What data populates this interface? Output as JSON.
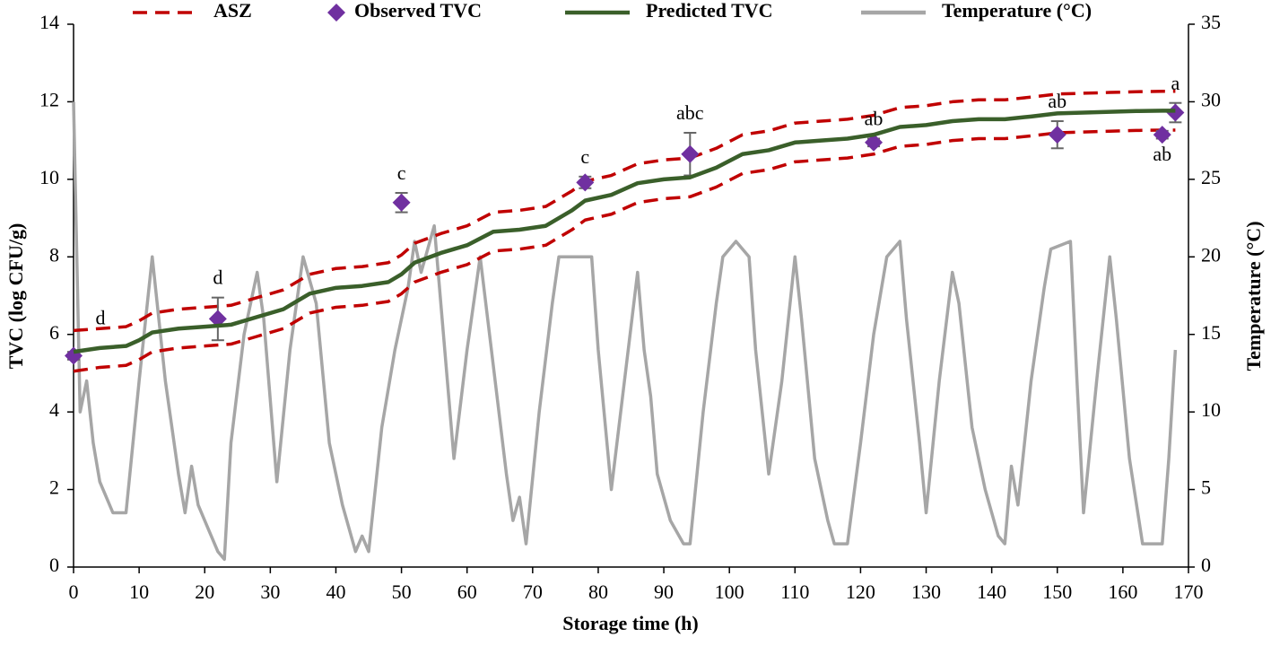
{
  "chart_data": {
    "type": "line",
    "x_label": "Storage time (h)",
    "y_label": "TVC (log CFU/g)",
    "y2_label": "Temperature (°C)",
    "xlim": [
      0,
      170
    ],
    "xticks": [
      0,
      10,
      20,
      30,
      40,
      50,
      60,
      70,
      80,
      90,
      100,
      110,
      120,
      130,
      140,
      150,
      160,
      170
    ],
    "ylim": [
      0,
      14
    ],
    "yticks": [
      0,
      2,
      4,
      6,
      8,
      10,
      12,
      14
    ],
    "y2lim": [
      0,
      35
    ],
    "y2ticks": [
      0,
      5,
      10,
      15,
      20,
      25,
      30,
      35
    ],
    "legend": "top",
    "grid": false,
    "series": [
      {
        "name": "ASZ",
        "kind": "band",
        "color": "#c00000",
        "x": [
          0,
          4,
          8,
          10,
          12,
          16,
          20,
          24,
          28,
          32,
          34,
          36,
          40,
          44,
          48,
          50,
          52,
          56,
          60,
          64,
          68,
          72,
          76,
          78,
          82,
          86,
          90,
          94,
          98,
          102,
          106,
          110,
          114,
          118,
          122,
          126,
          130,
          134,
          138,
          142,
          146,
          150,
          154,
          158,
          162,
          166,
          168
        ],
        "upper": [
          6.1,
          6.15,
          6.2,
          6.35,
          6.55,
          6.65,
          6.7,
          6.75,
          6.95,
          7.15,
          7.35,
          7.55,
          7.7,
          7.75,
          7.85,
          8.05,
          8.35,
          8.6,
          8.8,
          9.15,
          9.2,
          9.3,
          9.7,
          9.95,
          10.1,
          10.4,
          10.5,
          10.55,
          10.8,
          11.15,
          11.25,
          11.45,
          11.5,
          11.55,
          11.65,
          11.85,
          11.9,
          12.0,
          12.05,
          12.05,
          12.12,
          12.2,
          12.22,
          12.24,
          12.26,
          12.27,
          12.27
        ],
        "lower": [
          5.05,
          5.15,
          5.2,
          5.35,
          5.55,
          5.65,
          5.7,
          5.75,
          5.95,
          6.15,
          6.35,
          6.55,
          6.7,
          6.75,
          6.85,
          7.05,
          7.35,
          7.6,
          7.8,
          8.15,
          8.2,
          8.3,
          8.7,
          8.95,
          9.1,
          9.4,
          9.5,
          9.55,
          9.8,
          10.15,
          10.25,
          10.45,
          10.5,
          10.55,
          10.65,
          10.85,
          10.9,
          11.0,
          11.05,
          11.05,
          11.12,
          11.2,
          11.22,
          11.24,
          11.26,
          11.27,
          11.27
        ]
      },
      {
        "name": "Observed TVC",
        "kind": "scatter",
        "color": "#7030a0",
        "x": [
          0,
          22,
          50,
          78,
          94,
          122,
          150,
          166,
          168
        ],
        "values": [
          5.45,
          6.4,
          9.4,
          9.92,
          10.65,
          10.95,
          11.15,
          11.15,
          11.72
        ],
        "errors": [
          0.1,
          0.55,
          0.25,
          0.15,
          0.55,
          0.1,
          0.35,
          0.1,
          0.25
        ],
        "labels": [
          "d",
          "d",
          "c",
          "c",
          "abc",
          "ab",
          "ab",
          "ab",
          "a"
        ]
      },
      {
        "name": "Predicted TVC",
        "kind": "line",
        "color": "#3a5f2a",
        "x": [
          0,
          4,
          8,
          10,
          12,
          16,
          20,
          24,
          28,
          32,
          34,
          36,
          40,
          44,
          48,
          50,
          52,
          56,
          60,
          64,
          68,
          72,
          76,
          78,
          82,
          86,
          90,
          94,
          98,
          102,
          106,
          110,
          114,
          118,
          122,
          126,
          130,
          134,
          138,
          142,
          146,
          150,
          154,
          158,
          162,
          166,
          168
        ],
        "values": [
          5.55,
          5.65,
          5.7,
          5.85,
          6.05,
          6.15,
          6.2,
          6.25,
          6.45,
          6.65,
          6.85,
          7.05,
          7.2,
          7.25,
          7.35,
          7.55,
          7.85,
          8.1,
          8.3,
          8.65,
          8.7,
          8.8,
          9.2,
          9.45,
          9.6,
          9.9,
          10.0,
          10.05,
          10.3,
          10.65,
          10.75,
          10.95,
          11.0,
          11.05,
          11.15,
          11.35,
          11.4,
          11.5,
          11.55,
          11.55,
          11.62,
          11.7,
          11.72,
          11.74,
          11.76,
          11.77,
          11.77
        ]
      },
      {
        "name": "Temperature (°C)",
        "kind": "line",
        "axis": "y2",
        "color": "#a6a6a6",
        "x": [
          0,
          1,
          2,
          3,
          4,
          5,
          6,
          8,
          10,
          12,
          14,
          16,
          17,
          18,
          19,
          20,
          22,
          23,
          24,
          26,
          28,
          29,
          31,
          33,
          35,
          37,
          39,
          41,
          43,
          44,
          45,
          47,
          49,
          51,
          52,
          53,
          55,
          57,
          58,
          60,
          62,
          64,
          66,
          67,
          68,
          69,
          71,
          73,
          74,
          79,
          80,
          82,
          84,
          86,
          87,
          88,
          89,
          91,
          93,
          94,
          96,
          98,
          99,
          101,
          103,
          104,
          106,
          108,
          110,
          111,
          113,
          115,
          116,
          118,
          120,
          122,
          124,
          126,
          127,
          129,
          130,
          132,
          134,
          135,
          137,
          139,
          141,
          142,
          143,
          144,
          146,
          148,
          149,
          152,
          153,
          154,
          156,
          158,
          159,
          161,
          163,
          166,
          167,
          168
        ],
        "values": [
          30,
          10,
          12,
          8,
          5.5,
          4.5,
          3.5,
          3.5,
          12,
          20,
          12,
          6,
          3.5,
          6.5,
          4,
          3,
          1,
          0.5,
          8,
          15,
          19,
          16,
          5.5,
          14,
          20,
          17,
          8,
          4,
          1,
          2,
          1,
          9,
          14,
          18,
          21,
          19,
          22,
          12,
          7,
          14,
          20,
          13,
          6,
          3,
          4.5,
          1.5,
          10,
          17,
          20,
          20,
          14,
          5,
          12,
          19,
          14,
          11,
          6,
          3,
          1.5,
          1.5,
          10,
          17,
          20,
          21,
          20,
          14,
          6,
          12,
          20,
          16,
          7,
          3,
          1.5,
          1.5,
          8,
          15,
          20,
          21,
          16,
          8,
          3.5,
          12,
          19,
          17,
          9,
          5,
          2,
          1.5,
          6.5,
          4,
          12,
          18,
          20.5,
          21,
          12,
          3.5,
          12,
          20,
          16,
          7,
          1.5,
          1.5,
          7,
          14
        ]
      }
    ]
  }
}
